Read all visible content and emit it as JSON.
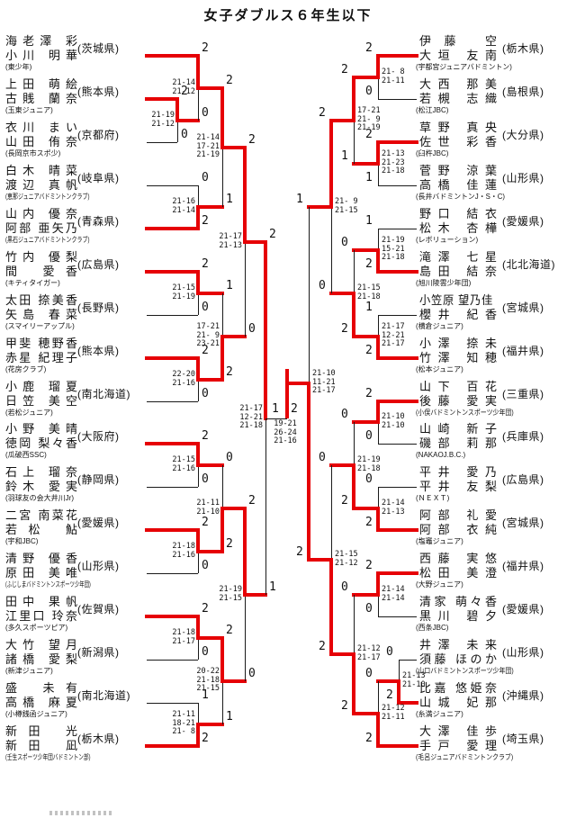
{
  "title": "女子ダブルス６年生以下",
  "colors": {
    "red": "#e60005",
    "line": "#1a1a1a"
  },
  "left_teams": [
    {
      "p1": "海老澤 彩",
      "p2": "小川 明華",
      "club": "(東少年)",
      "pref": "(茨城県)"
    },
    {
      "p1": "上田 萌絵",
      "p2": "古賎 蘭奈",
      "club": "(玉東ジュニア)",
      "pref": "(熊本県)"
    },
    {
      "p1": "衣川 まい",
      "p2": "山田 侑奈",
      "club": "(長岡京市スポ少)",
      "pref": "(京都府)"
    },
    {
      "p1": "白木 晴菜",
      "p2": "渡辺 真帆",
      "club": "(恵那ジュニアバドミントンクラブ)",
      "pref": "(岐阜県)"
    },
    {
      "p1": "山内 優奈",
      "p2": "阿部 亜矢乃",
      "club": "(黒石ジュニアバドミントンクラブ)",
      "pref": "(青森県)"
    },
    {
      "p1": "竹内 優梨",
      "p2": "間 愛香",
      "club": "(キティタイガー)",
      "pref": "(広島県)"
    },
    {
      "p1": "太田 捺美香",
      "p2": "矢島 春菜",
      "club": "(スマイリーアップル)",
      "pref": "(長野県)"
    },
    {
      "p1": "甲斐 穂野香",
      "p2": "赤星 紀理子",
      "club": "(花房クラブ)",
      "pref": "(熊本県)"
    },
    {
      "p1": "小鹿 瑠夏",
      "p2": "日笠 美空",
      "club": "(若松ジュニア)",
      "pref": "(南北海道)"
    },
    {
      "p1": "小野 美晴",
      "p2": "徳岡 梨々香",
      "club": "(瓜破西SSC)",
      "pref": "(大阪府)"
    },
    {
      "p1": "石上 瑠奈",
      "p2": "鈴木 愛実",
      "club": "(羽球友の会大井川Jr)",
      "pref": "(静岡県)"
    },
    {
      "p1": "二宮 南菜花",
      "p2": "若松 鮎",
      "club": "(宇和JBC)",
      "pref": "(愛媛県)"
    },
    {
      "p1": "清野 優香",
      "p2": "原田 美唯",
      "club": "(ふじしまバドミントンスポーツ少年団)",
      "pref": "(山形県)"
    },
    {
      "p1": "田中 果帆",
      "p2": "江里口 玲奈",
      "club": "(多久スポーツピア)",
      "pref": "(佐賀県)"
    },
    {
      "p1": "大竹 望月",
      "p2": "諸橋 愛梨",
      "club": "(新津ジュニア)",
      "pref": "(新潟県)"
    },
    {
      "p1": "盛 未有",
      "p2": "高橋 麻夏",
      "club": "(小樽銭函ジュニア)",
      "pref": "(南北海道)"
    },
    {
      "p1": "新田 光",
      "p2": "新田 凪",
      "club": "(壬生スポーツ少年団バドミントン部)",
      "pref": "(栃木県)"
    }
  ],
  "right_teams": [
    {
      "p1": "伊藤 空",
      "p2": "大垣 友南",
      "club": "(宇都宮ジュニアバドミントン)",
      "pref": "(栃木県)"
    },
    {
      "p1": "大西 那美",
      "p2": "若槻 志織",
      "club": "(松江JBC)",
      "pref": "(島根県)"
    },
    {
      "p1": "草野 真央",
      "p2": "佐世 彩香",
      "club": "(臼杵JBC)",
      "pref": "(大分県)"
    },
    {
      "p1": "菅野 涼葉",
      "p2": "高橋 佳蓮",
      "club": "(長井バドミントンJ・S・C)",
      "pref": "(山形県)"
    },
    {
      "p1": "野口 結衣",
      "p2": "松木 杏樺",
      "club": "(レボリューション)",
      "pref": "(愛媛県)"
    },
    {
      "p1": "滝澤 七星",
      "p2": "島田 結奈",
      "club": "(旭川陵雲少年団)",
      "pref": "(北北海道)"
    },
    {
      "p1": "小笠原 望乃佳",
      "p2": "櫻井 紀香",
      "club": "(横倉ジュニア)",
      "pref": "(宮城県)"
    },
    {
      "p1": "小澤 捺未",
      "p2": "竹澤 知穂",
      "club": "(松本ジュニア)",
      "pref": "(福井県)"
    },
    {
      "p1": "山下 百花",
      "p2": "後藤 愛実",
      "club": "(小俣バドミントンスポーツ少年団)",
      "pref": "(三重県)"
    },
    {
      "p1": "山崎 新子",
      "p2": "磯部 莉那",
      "club": "(NAKAOJ.B.C.)",
      "pref": "(兵庫県)"
    },
    {
      "p1": "平井 愛乃",
      "p2": "平井 友梨",
      "club": "(ＮＥＸＴ)",
      "pref": "(広島県)"
    },
    {
      "p1": "阿部 礼愛",
      "p2": "阿部 衣純",
      "club": "(塩竈ジュニア)",
      "pref": "(宮城県)"
    },
    {
      "p1": "西藤 実悠",
      "p2": "松田 美澄",
      "club": "(大野ジュニア)",
      "pref": "(福井県)"
    },
    {
      "p1": "清家 萌々香",
      "p2": "黒川 碧夕",
      "club": "(西条JBC)",
      "pref": "(愛媛県)"
    },
    {
      "p1": "井澤 未来",
      "p2": "須藤 ほのか",
      "club": "(山口バドミントンスポーツ少年団)",
      "pref": "(山形県)"
    },
    {
      "p1": "比嘉 悠姫奈",
      "p2": "山城 妃那",
      "club": "(糸満ジュニア)",
      "pref": "(沖縄県)"
    },
    {
      "p1": "大澤 佳歩",
      "p2": "手戸 愛理",
      "club": "(毛呂ジュニアバドミントンクラブ)",
      "pref": "(埼玉県)"
    }
  ],
  "left_matches": [
    {
      "id": "L1",
      "round": 1,
      "top": "T1",
      "bottom": "T2",
      "sets": [
        "21-19",
        "21-12"
      ],
      "top_score": "2",
      "bottom_score": "0",
      "winner": "top"
    },
    {
      "id": "L2",
      "round": 2,
      "top": "T0",
      "bottom": "L1",
      "sets": [
        "21-14",
        "21-12"
      ],
      "top_score": "2",
      "bottom_score": "0",
      "winner": "top"
    },
    {
      "id": "L3",
      "round": 2,
      "top": "T3",
      "bottom": "T4",
      "sets": [
        "21-16",
        "21-14"
      ],
      "top_score": "0",
      "bottom_score": "2",
      "winner": "bottom"
    },
    {
      "id": "L4",
      "round": 3,
      "top": "L2",
      "bottom": "L3",
      "sets": [
        "21-14",
        "17-21",
        "21-19"
      ],
      "top_score": "2",
      "bottom_score": "1",
      "winner": "top"
    },
    {
      "id": "L5",
      "round": 2,
      "top": "T5",
      "bottom": "T6",
      "sets": [
        "21-15",
        "21-19"
      ],
      "top_score": "2",
      "bottom_score": "0",
      "winner": "top"
    },
    {
      "id": "L6",
      "round": 2,
      "top": "T7",
      "bottom": "T8",
      "sets": [
        "22-20",
        "21-16"
      ],
      "top_score": "2",
      "bottom_score": "0",
      "winner": "top"
    },
    {
      "id": "L7",
      "round": 3,
      "top": "L5",
      "bottom": "L6",
      "sets": [
        "17-21",
        "21- 9",
        "23-21"
      ],
      "top_score": "1",
      "bottom_score": "2",
      "winner": "bottom"
    },
    {
      "id": "L8",
      "round": 4,
      "top": "L4",
      "bottom": "L7",
      "sets": [
        "21-17",
        "21-13"
      ],
      "top_score": "2",
      "bottom_score": "0",
      "winner": "top"
    },
    {
      "id": "L9",
      "round": 2,
      "top": "T9",
      "bottom": "T10",
      "sets": [
        "21-15",
        "21-16"
      ],
      "top_score": "2",
      "bottom_score": "0",
      "winner": "top"
    },
    {
      "id": "L10",
      "round": 2,
      "top": "T11",
      "bottom": "T12",
      "sets": [
        "21-18",
        "21-16"
      ],
      "top_score": "2",
      "bottom_score": "0",
      "winner": "top"
    },
    {
      "id": "L11",
      "round": 3,
      "top": "L9",
      "bottom": "L10",
      "sets": [
        "21-11",
        "21-10"
      ],
      "top_score": "0",
      "bottom_score": "2",
      "winner": "bottom"
    },
    {
      "id": "L12",
      "round": 2,
      "top": "T13",
      "bottom": "T14",
      "sets": [
        "21-18",
        "21-17"
      ],
      "top_score": "2",
      "bottom_score": "0",
      "winner": "top"
    },
    {
      "id": "L13",
      "round": 2,
      "top": "T15",
      "bottom": "T16",
      "sets": [
        "21-11",
        "18-21",
        "21- 8"
      ],
      "top_score": "1",
      "bottom_score": "2",
      "winner": "bottom"
    },
    {
      "id": "L14",
      "round": 3,
      "top": "L12",
      "bottom": "L13",
      "sets": [
        "20-22",
        "21-18",
        "21-15"
      ],
      "top_score": "2",
      "bottom_score": "1",
      "winner": "top"
    },
    {
      "id": "L15",
      "round": 4,
      "top": "L11",
      "bottom": "L14",
      "sets": [
        "21-19",
        "21-15"
      ],
      "top_score": "2",
      "bottom_score": "0",
      "winner": "top"
    },
    {
      "id": "L16",
      "round": 5,
      "top": "L8",
      "bottom": "L15",
      "sets": [
        "21-17",
        "12-21",
        "21-18"
      ],
      "top_score": "2",
      "bottom_score": "1",
      "winner": "top"
    }
  ],
  "right_matches": [
    {
      "id": "R1",
      "round": 2,
      "top": "T0",
      "bottom": "T1",
      "sets": [
        "21- 8",
        "21-11"
      ],
      "top_score": "2",
      "bottom_score": "0",
      "winner": "top"
    },
    {
      "id": "R2",
      "round": 2,
      "top": "T2",
      "bottom": "T3",
      "sets": [
        "21-13",
        "21-23",
        "21-18"
      ],
      "top_score": "2",
      "bottom_score": "1",
      "winner": "top"
    },
    {
      "id": "R3",
      "round": 3,
      "top": "R1",
      "bottom": "R2",
      "sets": [
        "17-21",
        "21- 9",
        "21-19"
      ],
      "top_score": "2",
      "bottom_score": "1",
      "winner": "top"
    },
    {
      "id": "R4",
      "round": 2,
      "top": "T4",
      "bottom": "T5",
      "sets": [
        "21-19",
        "15-21",
        "21-18"
      ],
      "top_score": "1",
      "bottom_score": "2",
      "winner": "bottom"
    },
    {
      "id": "R5",
      "round": 2,
      "top": "T6",
      "bottom": "T7",
      "sets": [
        "21-17",
        "12-21",
        "21-17"
      ],
      "top_score": "1",
      "bottom_score": "2",
      "winner": "bottom"
    },
    {
      "id": "R6",
      "round": 3,
      "top": "R4",
      "bottom": "R5",
      "sets": [
        "21-15",
        "21-18"
      ],
      "top_score": "0",
      "bottom_score": "2",
      "winner": "bottom"
    },
    {
      "id": "R7",
      "round": 4,
      "top": "R3",
      "bottom": "R6",
      "sets": [
        "21- 9",
        "21-15"
      ],
      "top_score": "2",
      "bottom_score": "0",
      "winner": "top"
    },
    {
      "id": "R8",
      "round": 2,
      "top": "T8",
      "bottom": "T9",
      "sets": [
        "21-10",
        "21-10"
      ],
      "top_score": "2",
      "bottom_score": "0",
      "winner": "top"
    },
    {
      "id": "R9",
      "round": 2,
      "top": "T10",
      "bottom": "T11",
      "sets": [
        "21-14",
        "21-13"
      ],
      "top_score": "0",
      "bottom_score": "2",
      "winner": "bottom"
    },
    {
      "id": "R10",
      "round": 3,
      "top": "R8",
      "bottom": "R9",
      "sets": [
        "21-19",
        "21-18"
      ],
      "top_score": "0",
      "bottom_score": "2",
      "winner": "bottom"
    },
    {
      "id": "R11",
      "round": 2,
      "top": "T12",
      "bottom": "T13",
      "sets": [
        "21-14",
        "21-14"
      ],
      "top_score": "2",
      "bottom_score": "0",
      "winner": "top"
    },
    {
      "id": "R12",
      "round": 1,
      "top": "T14",
      "bottom": "T15",
      "sets": [
        "21-13",
        "21-10"
      ],
      "top_score": "0",
      "bottom_score": "2",
      "winner": "bottom"
    },
    {
      "id": "R13",
      "round": 2,
      "top": "R12",
      "bottom": "T16",
      "sets": [
        "21-12",
        "21-11"
      ],
      "top_score": "0",
      "bottom_score": "2",
      "winner": "bottom"
    },
    {
      "id": "R14",
      "round": 3,
      "top": "R11",
      "bottom": "R13",
      "sets": [
        "21-12",
        "21-17"
      ],
      "top_score": "0",
      "bottom_score": "2",
      "winner": "bottom"
    },
    {
      "id": "R15",
      "round": 4,
      "top": "R10",
      "bottom": "R14",
      "sets": [
        "21-15",
        "21-12"
      ],
      "top_score": "0",
      "bottom_score": "2",
      "winner": "bottom"
    },
    {
      "id": "R16",
      "round": 5,
      "top": "R7",
      "bottom": "R15",
      "sets": [
        "21-10",
        "11-21",
        "21-17"
      ],
      "top_score": "1",
      "bottom_score": "2",
      "winner": "bottom"
    }
  ],
  "final": {
    "left_score": "1",
    "right_score": "2",
    "sets": [
      "19-21",
      "26-24",
      "21-16"
    ],
    "winner": "right"
  }
}
